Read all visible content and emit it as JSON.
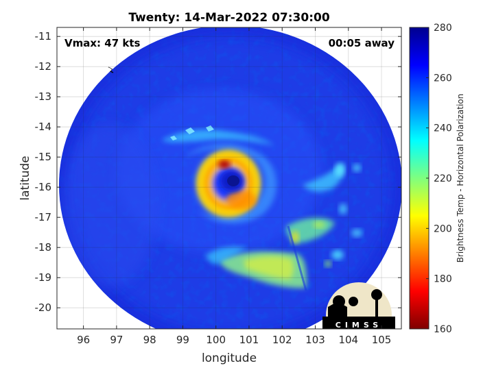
{
  "chart_data": {
    "type": "heatmap",
    "title": "Twenty: 14-Mar-2022 07:30:00",
    "xlabel": "longitude",
    "ylabel": "latitude",
    "xlim": [
      95.2,
      105.6
    ],
    "ylim": [
      -20.7,
      -10.7
    ],
    "x_ticks": [
      "96",
      "97",
      "98",
      "99",
      "100",
      "101",
      "102",
      "103",
      "104",
      "105"
    ],
    "y_ticks": [
      "-11",
      "-12",
      "-13",
      "-14",
      "-15",
      "-16",
      "-17",
      "-18",
      "-19",
      "-20"
    ],
    "grid": true,
    "annotations": {
      "vmax": "Vmax: 47 kts",
      "time_offset": "00:05 away"
    },
    "colorbar": {
      "label": "Brightness Temp - Horizontal Polarization",
      "range": [
        160,
        280
      ],
      "ticks": [
        "160",
        "180",
        "200",
        "220",
        "240",
        "260",
        "280"
      ],
      "colormap": [
        "#7f0000",
        "#ff0000",
        "#ff7f00",
        "#ffff00",
        "#7fff7f",
        "#00ffff",
        "#007fff",
        "#0000ff",
        "#00008f"
      ]
    },
    "swath": {
      "center_lon": 100.35,
      "center_lat": -15.85,
      "background_temp": 262
    },
    "features": [
      {
        "name": "eye",
        "lon": 100.45,
        "lat": -15.85,
        "temp": 268
      },
      {
        "name": "eyewall",
        "lon": 100.4,
        "lat": -15.85,
        "temp": 205,
        "min_temp": 165
      },
      {
        "name": "south-rainband",
        "lon": 101.5,
        "lat": -18.6,
        "temp": 232
      },
      {
        "name": "east-rainband",
        "lon": 102.8,
        "lat": -17.3,
        "temp": 238
      },
      {
        "name": "northeast-rainband",
        "lon": 103.8,
        "lat": -16.0,
        "temp": 240
      }
    ],
    "logo_text": "CIMSS"
  }
}
